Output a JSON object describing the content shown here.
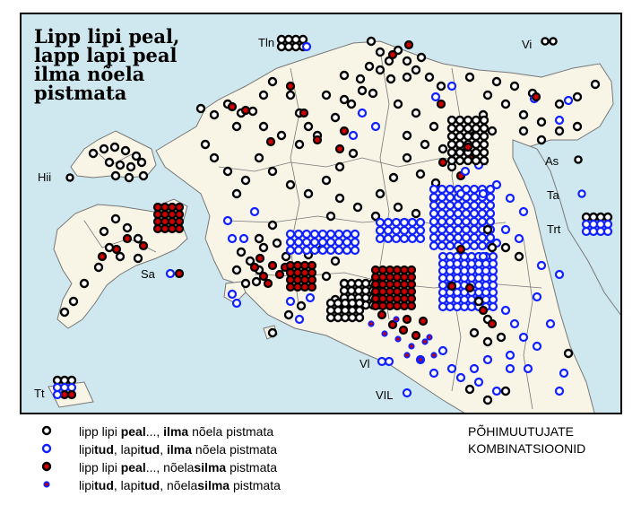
{
  "title_lines": [
    "Lipp lipi peal,",
    "lapp lapi peal",
    "ilma nõela",
    "pistmata"
  ],
  "subtitle_lines": [
    "PÕHIMUUTUJATE",
    "KOMBINATSIOONID"
  ],
  "colors": {
    "sea": "#cfe8ef",
    "land": "#f8f4e6",
    "boundary": "#777777",
    "black_ring": "#000000",
    "blue_ring": "#1020ff",
    "red_fill": "#cc0000"
  },
  "region_labels": [
    {
      "key": "tln",
      "text": "Tln"
    },
    {
      "key": "vi",
      "text": "Vi"
    },
    {
      "key": "hii",
      "text": "Hii"
    },
    {
      "key": "as",
      "text": "As"
    },
    {
      "key": "ta",
      "text": "Ta"
    },
    {
      "key": "trt",
      "text": "Trt"
    },
    {
      "key": "sa",
      "text": "Sa"
    },
    {
      "key": "vl",
      "text": "Vl"
    },
    {
      "key": "vil",
      "text": "VIL"
    },
    {
      "key": "tt",
      "text": "Tt"
    }
  ],
  "legend": [
    {
      "symbol": "black-ring",
      "pre": "lipp lipi ",
      "b1": "peal",
      "mid": "..., ",
      "b2": "ilma",
      "post": " nõela pistmata"
    },
    {
      "symbol": "blue-ring",
      "pre": "lipi",
      "b1": "tud",
      "mid": ", lapi",
      "b2": "tud",
      "mid2": ", ",
      "b3": "ilma",
      "post": " nõela pistmata"
    },
    {
      "symbol": "black-ring-red-fill",
      "pre": "lipp lipi ",
      "b1": "peal",
      "mid": "..., nõela",
      "b2": "silma",
      "post": " pistmata"
    },
    {
      "symbol": "blue-dot-red",
      "pre": "lipi",
      "b1": "tud",
      "mid": ", lapi",
      "b2": "tud",
      "mid2": ", nõela",
      "b3": "silma",
      "post": " pistmata"
    }
  ]
}
